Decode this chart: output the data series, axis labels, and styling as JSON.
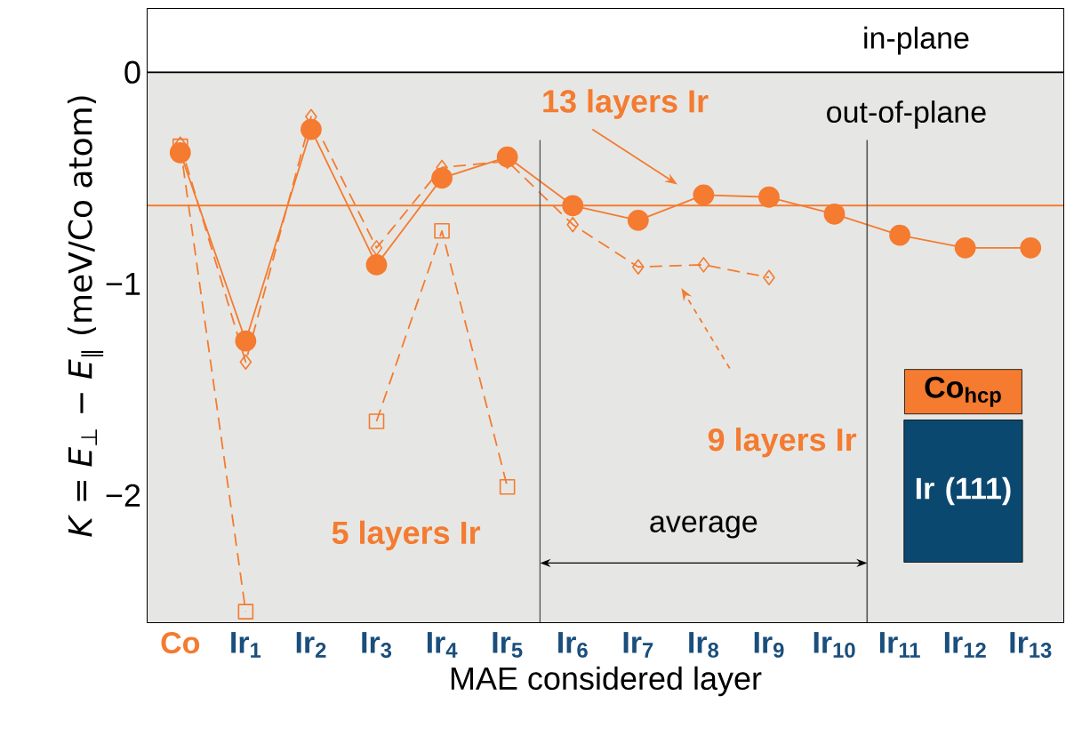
{
  "chart_data": {
    "type": "line",
    "xlabel": "MAE considered layer",
    "ylabel": "*K* = *E*$_{⊥}$ − *E*$_{∥}$ (meV/Co atom)",
    "categories": [
      "Co",
      "Ir$_{1}$",
      "Ir$_{2}$",
      "Ir$_{3}$",
      "Ir$_{4}$",
      "Ir$_{5}$",
      "Ir$_{6}$",
      "Ir$_{7}$",
      "Ir$_{8}$",
      "Ir$_{9}$",
      "Ir$_{10}$",
      "Ir$_{11}$",
      "Ir$_{12}$",
      "Ir$_{13}$"
    ],
    "series": [
      {
        "color": "#f47b30",
        "marker": "circle",
        "line_style": "solid",
        "values": [
          -0.38,
          -1.27,
          -0.27,
          -0.91,
          -0.5,
          -0.4,
          -0.63,
          -0.7,
          -0.58,
          -0.59,
          -0.67,
          -0.77,
          -0.83,
          -0.83
        ]
      },
      {
        "color": "#f47b30",
        "marker": "diamond",
        "line_style": "dashed",
        "values": [
          -0.34,
          -1.37,
          -0.21,
          -0.83,
          -0.45,
          -0.42,
          -0.72,
          -0.92,
          -0.91,
          -0.97,
          null,
          null,
          null,
          null
        ]
      },
      {
        "color": "#f47b30",
        "marker": "square",
        "line_style": "dashed",
        "values": [
          -0.35,
          -2.55,
          null,
          -1.65,
          -0.75,
          -1.96,
          null,
          null,
          null,
          null,
          null,
          null,
          null,
          null
        ]
      }
    ],
    "ylim": [
      -2.6,
      0.3
    ],
    "yticks": [
      {
        "value": 0.2,
        "label": null
      },
      0,
      {
        "value": -0.2,
        "label": null
      },
      {
        "value": -0.4,
        "label": null
      },
      {
        "value": -0.6,
        "label": null
      },
      {
        "value": -0.8,
        "label": null
      },
      {
        "value": -1,
        "label": "−1"
      },
      {
        "value": -1.2,
        "label": null
      },
      {
        "value": -1.4,
        "label": null
      },
      {
        "value": -1.6,
        "label": null
      },
      {
        "value": -1.8,
        "label": null
      },
      {
        "value": -2,
        "label": "−2"
      },
      {
        "value": -2.2,
        "label": null
      },
      {
        "value": -2.4,
        "label": null
      }
    ],
    "bands": [
      {
        "axis": "y",
        "from": 0,
        "to": 0.3,
        "label": "in-plane",
        "color": "#ffffff"
      },
      {
        "axis": "y",
        "from": -2.6,
        "to": 0,
        "label": "out-of-plane",
        "color": "#e6e7e4"
      }
    ],
    "ref_lines": [
      {
        "axis": "y",
        "value": 0,
        "color": "#000000"
      },
      {
        "axis": "y",
        "value": -0.63,
        "color": "#f47b30"
      }
    ],
    "annotations": [
      "average",
      "Co$_{hcp}$",
      "Ir (111)",
      "13 layers Ir",
      "9 layers Ir",
      "5 layers Ir"
    ]
  }
}
